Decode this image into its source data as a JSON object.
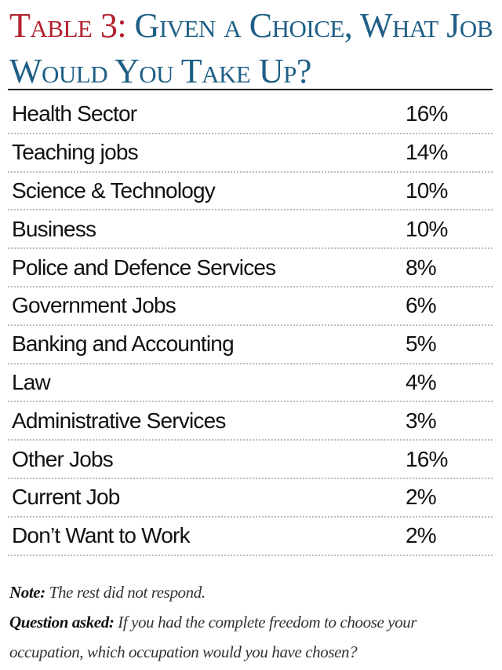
{
  "title": {
    "label": "Table 3:",
    "text": " Given a Choice, What Job Would You Take Up?"
  },
  "chart_data": {
    "type": "table",
    "title": "Table 3: Given a Choice, What Job Would You Take Up?",
    "rows": [
      {
        "label": "Health Sector",
        "value": "16%"
      },
      {
        "label": "Teaching jobs",
        "value": "14%"
      },
      {
        "label": "Science & Technology",
        "value": "10%"
      },
      {
        "label": "Business",
        "value": "10%"
      },
      {
        "label": "Police and Defence Services",
        "value": "8%"
      },
      {
        "label": "Government Jobs",
        "value": "6%"
      },
      {
        "label": "Banking and Accounting",
        "value": "5%"
      },
      {
        "label": "Law",
        "value": "4%"
      },
      {
        "label": "Administrative Services",
        "value": "3%"
      },
      {
        "label": "Other Jobs",
        "value": "16%"
      },
      {
        "label": "Current Job",
        "value": "2%"
      },
      {
        "label": "Don’t Want to Work",
        "value": "2%"
      }
    ]
  },
  "notes": {
    "note_label": "Note:",
    "note_text": " The rest did not respond.",
    "question_label": "Question asked:",
    "question_text": " If you had the complete freedom to choose your occupation, which occupation would you have chosen?"
  },
  "colors": {
    "title_label": "#b3202e",
    "title_text": "#1f5f86",
    "text": "#111111"
  }
}
